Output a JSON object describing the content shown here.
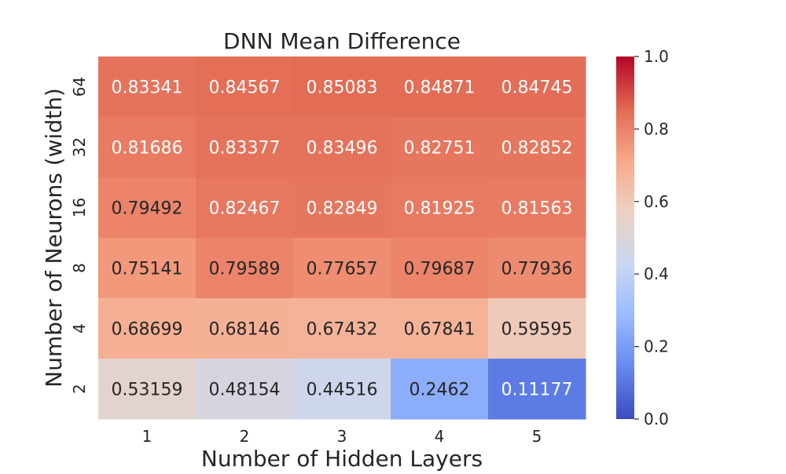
{
  "chart_data": {
    "type": "heatmap",
    "title": "DNN Mean Difference",
    "xlabel": "Number of Hidden Layers",
    "ylabel": "Number of Neurons (width)",
    "x_categories": [
      "1",
      "2",
      "3",
      "4",
      "5"
    ],
    "y_categories": [
      "64",
      "32",
      "16",
      "8",
      "4",
      "2"
    ],
    "values": [
      [
        0.83341,
        0.84567,
        0.85083,
        0.84871,
        0.84745
      ],
      [
        0.81686,
        0.83377,
        0.83496,
        0.82751,
        0.82852
      ],
      [
        0.79492,
        0.82467,
        0.82849,
        0.81925,
        0.81563
      ],
      [
        0.75141,
        0.79589,
        0.77657,
        0.79687,
        0.77936
      ],
      [
        0.68699,
        0.68146,
        0.67432,
        0.67841,
        0.59595
      ],
      [
        0.53159,
        0.48154,
        0.44516,
        0.2462,
        0.11177
      ]
    ],
    "value_labels": [
      [
        "0.83341",
        "0.84567",
        "0.85083",
        "0.84871",
        "0.84745"
      ],
      [
        "0.81686",
        "0.83377",
        "0.83496",
        "0.82751",
        "0.82852"
      ],
      [
        "0.79492",
        "0.82467",
        "0.82849",
        "0.81925",
        "0.81563"
      ],
      [
        "0.75141",
        "0.79589",
        "0.77657",
        "0.79687",
        "0.77936"
      ],
      [
        "0.68699",
        "0.68146",
        "0.67432",
        "0.67841",
        "0.59595"
      ],
      [
        "0.53159",
        "0.48154",
        "0.44516",
        "0.2462",
        "0.11177"
      ]
    ],
    "colorbar": {
      "vmin": 0.0,
      "vmax": 1.0,
      "ticks": [
        0.0,
        0.2,
        0.4,
        0.6,
        0.8,
        1.0
      ],
      "tick_labels": [
        "0.0",
        "0.2",
        "0.4",
        "0.6",
        "0.8",
        "1.0"
      ],
      "colormap": "coolwarm",
      "colormap_stops": [
        "#3b4cc0",
        "#6788ee",
        "#9abbff",
        "#c9d7f0",
        "#edd1c2",
        "#f7a889",
        "#e26952",
        "#b40426"
      ]
    },
    "grid": false
  }
}
